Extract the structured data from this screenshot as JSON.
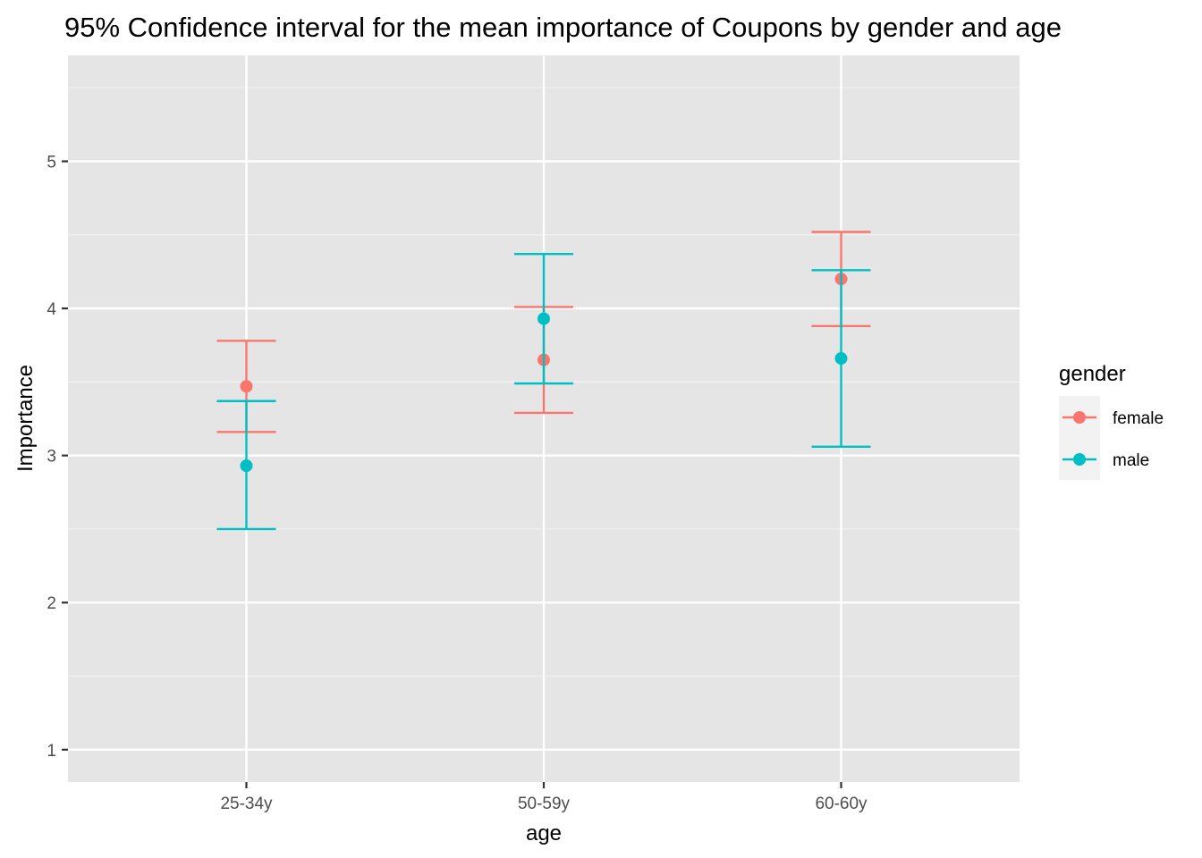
{
  "chart_data": {
    "type": "errorbar",
    "title": "95% Confidence interval for the mean importance of Coupons by gender and age",
    "xlabel": "age",
    "ylabel": "Importance",
    "categories": [
      "25-34y",
      "50-59y",
      "60-60y"
    ],
    "y_ticks": [
      1,
      2,
      3,
      4,
      5
    ],
    "ylim": [
      0.78,
      5.72
    ],
    "grid": true,
    "legend": {
      "title": "gender",
      "position": "right"
    },
    "series": [
      {
        "name": "female",
        "color": "#F8766D",
        "mean": [
          3.47,
          3.65,
          4.2
        ],
        "lower": [
          3.16,
          3.29,
          3.88
        ],
        "upper": [
          3.78,
          4.01,
          4.52
        ]
      },
      {
        "name": "male",
        "color": "#00BFC4",
        "mean": [
          2.93,
          3.93,
          3.66
        ],
        "lower": [
          2.5,
          3.49,
          3.06
        ],
        "upper": [
          3.37,
          4.37,
          4.26
        ]
      }
    ]
  }
}
